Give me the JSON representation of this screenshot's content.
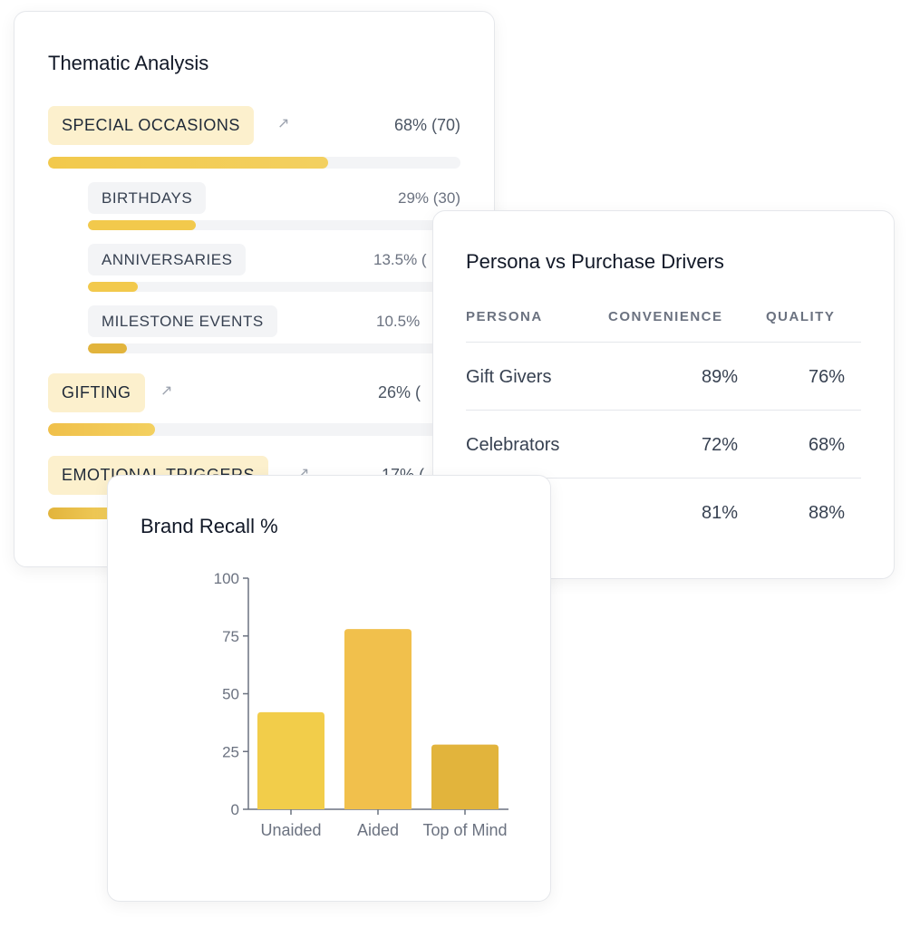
{
  "thematic": {
    "title": "Thematic Analysis",
    "themes": [
      {
        "label": "SPECIAL OCCASIONS",
        "pct": "68% (70)",
        "value": 68,
        "trend_icon": "trending-up-icon",
        "color": "#f2c94c",
        "subthemes": [
          {
            "label": "BIRTHDAYS",
            "pct": "29% (30)",
            "value": 29
          },
          {
            "label": "ANNIVERSARIES",
            "pct": "13.5% (",
            "value": 13.5
          },
          {
            "label": "MILESTONE EVENTS",
            "pct": "10.5%",
            "value": 10.5
          }
        ]
      },
      {
        "label": "GIFTING",
        "pct": "26% (",
        "value": 26,
        "trend_icon": "trending-up-icon",
        "color": "#f0c04a"
      },
      {
        "label": "EMOTIONAL TRIGGERS",
        "pct": "17% (",
        "value": 17,
        "trend_icon": "trending-up-icon",
        "color": "#e2b43c"
      }
    ]
  },
  "persona_table": {
    "title": "Persona vs Purchase Drivers",
    "columns": [
      "PERSONA",
      "CONVENIENCE",
      "QUALITY"
    ],
    "rows": [
      [
        "Gift Givers",
        "89%",
        "76%"
      ],
      [
        "Celebrators",
        "72%",
        "68%"
      ],
      [
        "",
        "81%",
        "88%"
      ]
    ]
  },
  "chart_data": {
    "type": "bar",
    "title": "Brand Recall %",
    "categories": [
      "Unaided",
      "Aided",
      "Top of Mind"
    ],
    "values": [
      42,
      78,
      28
    ],
    "colors": [
      "#f2cd4a",
      "#f1c04c",
      "#e2b43c"
    ],
    "ylim": [
      0,
      100
    ],
    "yticks": [
      "0",
      "25",
      "50",
      "75",
      "100"
    ],
    "grid": false,
    "xlabel": "",
    "ylabel": ""
  }
}
